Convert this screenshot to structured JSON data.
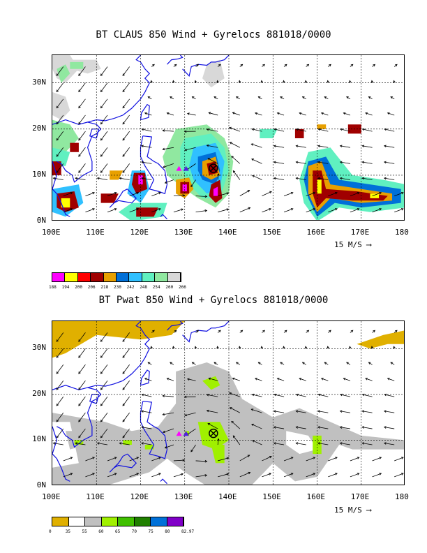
{
  "panel1": {
    "title": "BT CLAUS 850 Wind + Gyrelocs 881018/0000",
    "scale_label": "15 M/S",
    "colorbar": {
      "colors": [
        "#ff00ff",
        "#ffff00",
        "#ff0000",
        "#a00000",
        "#e8a000",
        "#0070d8",
        "#30c0ff",
        "#60f0c0",
        "#90e8a0",
        "#d8d8d8"
      ],
      "labels": [
        "188",
        "194",
        "200",
        "206",
        "218",
        "230",
        "242",
        "248",
        "254",
        "260",
        "266"
      ]
    }
  },
  "panel2": {
    "title": "BT Pwat 850 Wind + Gyrelocs 881018/0000",
    "scale_label": "15 M/S",
    "colorbar": {
      "colors": [
        "#e0b000",
        "#ffffff",
        "#c0c0c0",
        "#a0f000",
        "#40c000",
        "#208000",
        "#0070d8",
        "#8000c8"
      ],
      "labels": [
        "0",
        "35",
        "55",
        "60",
        "65",
        "70",
        "75",
        "80",
        "82.97"
      ]
    }
  },
  "axes": {
    "x_ticks": [
      "100E",
      "110E",
      "120E",
      "130E",
      "140E",
      "150E",
      "160E",
      "170E",
      "180"
    ],
    "y_ticks": [
      "0N",
      "10N",
      "20N",
      "30N"
    ],
    "lon_range": [
      100,
      180
    ],
    "lat_range": [
      0,
      36
    ]
  },
  "markers": {
    "gyre_center": {
      "lon": 136.5,
      "lat": 11.5
    },
    "triangles": [
      {
        "lon": 128.7,
        "lat": 11.4,
        "color": "#ff00ff"
      },
      {
        "lon": 130.3,
        "lat": 11.4,
        "color": "#5020e0"
      }
    ]
  },
  "colors": {
    "coast": "#1010e0",
    "grid": "#000000",
    "arrow": "#000000"
  }
}
